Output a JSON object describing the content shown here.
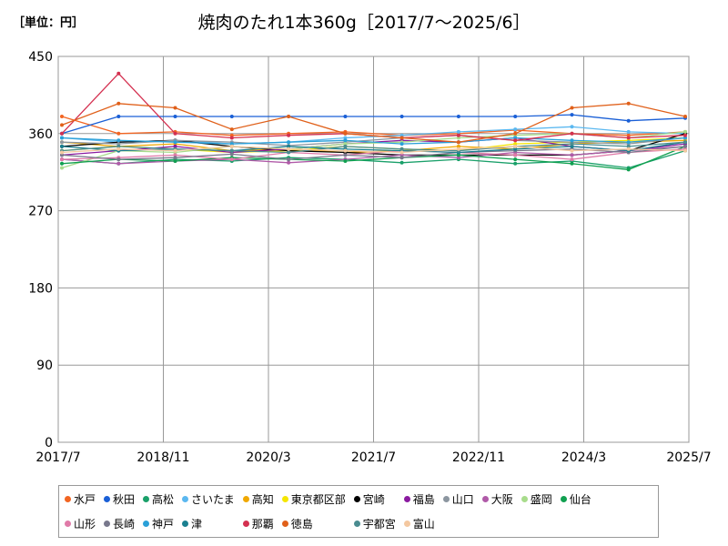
{
  "unit_label": "［単位：円］",
  "chart_data": {
    "type": "line",
    "title": "焼肉のたれ1本360g［2017/7～2025/6］",
    "xlabel": "",
    "ylabel": "",
    "ylim": [
      0,
      450
    ],
    "yticks": [
      "0",
      "90",
      "180",
      "270",
      "360",
      "450"
    ],
    "x_start": "2017/7",
    "x_end": "2025/7",
    "xticks": [
      "2017/7",
      "2018/11",
      "2020/3",
      "2021/7",
      "2022/11",
      "2024/3",
      "2025/7"
    ],
    "grid": true,
    "legend_position": "bottom",
    "series": [
      {
        "name": "水戸",
        "color": "#f26522",
        "values": [
          380,
          360,
          362,
          358,
          360,
          362,
          358,
          360,
          364,
          360,
          358,
          362
        ]
      },
      {
        "name": "秋田",
        "color": "#1a5fd6",
        "values": [
          360,
          380,
          380,
          380,
          380,
          380,
          380,
          380,
          380,
          382,
          375,
          378
        ]
      },
      {
        "name": "高松",
        "color": "#1aa06a",
        "values": [
          330,
          325,
          330,
          328,
          332,
          330,
          326,
          330,
          325,
          328,
          320,
          340
        ]
      },
      {
        "name": "さいたま",
        "color": "#5bb8f0",
        "values": [
          355,
          350,
          352,
          348,
          350,
          355,
          358,
          362,
          365,
          368,
          362,
          360
        ]
      },
      {
        "name": "高知",
        "color": "#f0a800",
        "values": [
          350,
          345,
          348,
          340,
          342,
          338,
          340,
          345,
          342,
          348,
          350,
          352
        ]
      },
      {
        "name": "東京都区部",
        "color": "#f5e600",
        "values": [
          340,
          345,
          342,
          338,
          340,
          345,
          342,
          340,
          348,
          350,
          352,
          355
        ]
      },
      {
        "name": "宮崎",
        "color": "#000000",
        "values": [
          345,
          350,
          352,
          345,
          340,
          338,
          335,
          335,
          335,
          335,
          340,
          360
        ]
      },
      {
        "name": "福島",
        "color": "#8a1aa0",
        "values": [
          335,
          340,
          345,
          338,
          342,
          348,
          352,
          350,
          355,
          345,
          340,
          348
        ]
      },
      {
        "name": "山口",
        "color": "#8c96a0",
        "values": [
          350,
          348,
          352,
          350,
          346,
          350,
          355,
          358,
          352,
          350,
          348,
          355
        ]
      },
      {
        "name": "大阪",
        "color": "#b05aa8",
        "values": [
          330,
          325,
          328,
          330,
          326,
          330,
          335,
          332,
          338,
          335,
          340,
          345
        ]
      },
      {
        "name": "盛岡",
        "color": "#a8dc8c",
        "values": [
          320,
          340,
          338,
          345,
          342,
          348,
          350,
          355,
          358,
          360,
          355,
          362
        ]
      },
      {
        "name": "仙台",
        "color": "#10a050",
        "values": [
          325,
          330,
          328,
          332,
          330,
          328,
          332,
          335,
          330,
          325,
          318,
          345
        ]
      },
      {
        "name": "山形",
        "color": "#e07aa8",
        "values": [
          330,
          332,
          335,
          330,
          338,
          335,
          340,
          338,
          335,
          330,
          338,
          342
        ]
      },
      {
        "name": "長崎",
        "color": "#78788c",
        "values": [
          335,
          330,
          332,
          336,
          330,
          335,
          332,
          338,
          340,
          342,
          338,
          345
        ]
      },
      {
        "name": "神戸",
        "color": "#2aa0d8",
        "values": [
          355,
          352,
          350,
          348,
          350,
          352,
          348,
          350,
          355,
          352,
          350,
          355
        ]
      },
      {
        "name": "津",
        "color": "#1a8090",
        "values": [
          345,
          340,
          342,
          340,
          345,
          342,
          340,
          338,
          342,
          345,
          340,
          350
        ]
      },
      {
        "name": "那覇",
        "color": "#d43050",
        "values": [
          360,
          430,
          360,
          355,
          358,
          360,
          355,
          358,
          352,
          360,
          355,
          358
        ]
      },
      {
        "name": "徳島",
        "color": "#e0601a",
        "values": [
          370,
          395,
          390,
          365,
          380,
          360,
          355,
          350,
          360,
          390,
          395,
          380
        ]
      },
      {
        "name": "宇都宮",
        "color": "#4a8c90",
        "values": [
          340,
          345,
          342,
          340,
          338,
          345,
          342,
          340,
          345,
          348,
          345,
          350
        ]
      },
      {
        "name": "富山",
        "color": "#f4c8a0",
        "values": [
          338,
          342,
          340,
          345,
          342,
          340,
          338,
          342,
          345,
          340,
          342,
          340
        ]
      }
    ]
  }
}
